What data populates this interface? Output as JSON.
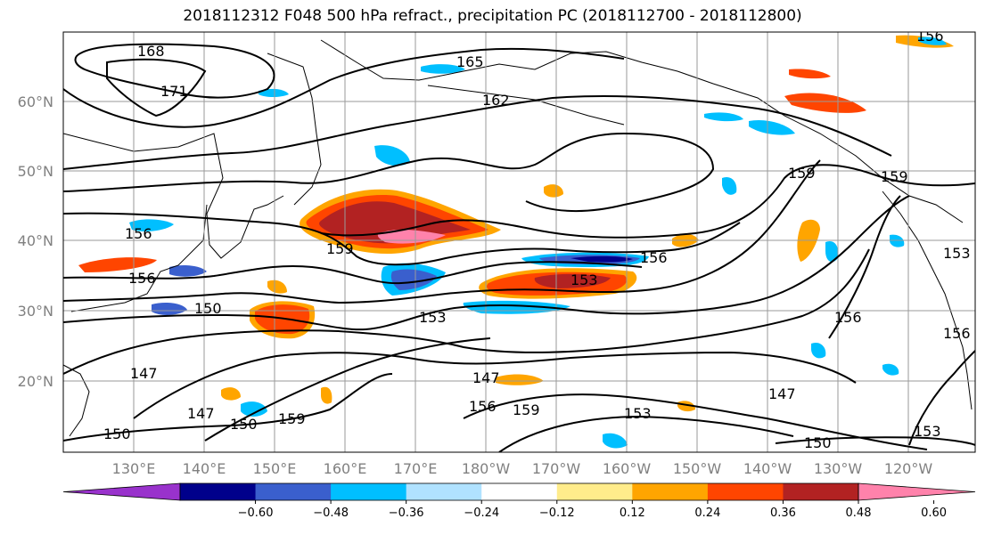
{
  "title": "2018112312 F048 500 hPa refract., precipitation PC (2018112700 - 2018112800)",
  "map": {
    "lat_labels": [
      "60°N",
      "50°N",
      "40°N",
      "30°N",
      "20°N"
    ],
    "lon_labels": [
      "130°E",
      "140°E",
      "150°E",
      "160°E",
      "170°E",
      "180°W",
      "170°W",
      "160°W",
      "150°W",
      "140°W",
      "130°W",
      "120°W"
    ],
    "contour_labels": [
      "168",
      "171",
      "165",
      "162",
      "159",
      "159",
      "156",
      "156",
      "156",
      "153",
      "153",
      "150",
      "150",
      "147",
      "147",
      "147",
      "147",
      "156",
      "159",
      "153",
      "150",
      "153",
      "153",
      "150",
      "156",
      "156",
      "159",
      "159",
      "156"
    ]
  },
  "colorbar": {
    "colors": [
      "#9932cc",
      "#00008b",
      "#3a5fcd",
      "#00bfff",
      "#b0e2ff",
      "#ffffff",
      "#ffec8b",
      "#ffa500",
      "#ff4500",
      "#b22222",
      "#ff82ab"
    ],
    "tick_labels": [
      "−0.60",
      "−0.48",
      "−0.36",
      "−0.24",
      "−0.12",
      "0.12",
      "0.24",
      "0.36",
      "0.48",
      "0.60"
    ]
  }
}
